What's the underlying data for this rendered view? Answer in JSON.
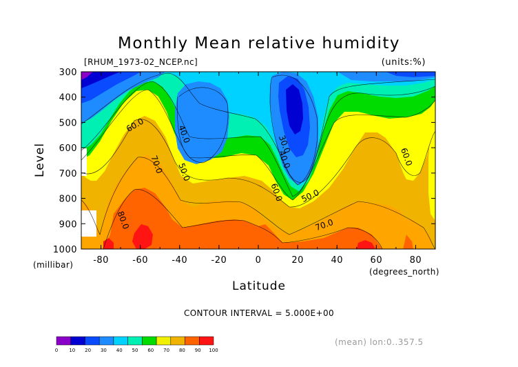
{
  "chart_data": {
    "type": "contour",
    "title": "Monthly Mean relative humidity",
    "file_label": "[RHUM_1973-02_NCEP.nc]",
    "units_label": "(units:%)",
    "xlabel": "Latitude",
    "x_units": "(degrees_north)",
    "ylabel": "Level",
    "y_units": "(millibar)",
    "xlim": [
      -90,
      90
    ],
    "ylim": [
      1000,
      300
    ],
    "x_ticks": [
      "-80",
      "-60",
      "-40",
      "-20",
      "0",
      "20",
      "40",
      "60",
      "80"
    ],
    "x_tick_values": [
      -80,
      -60,
      -40,
      -20,
      0,
      20,
      40,
      60,
      80
    ],
    "y_ticks": [
      "300",
      "400",
      "500",
      "600",
      "700",
      "800",
      "900",
      "1000"
    ],
    "y_tick_values": [
      300,
      400,
      500,
      600,
      700,
      800,
      900,
      1000
    ],
    "contour_interval_label": "CONTOUR INTERVAL = 5.000E+00",
    "footer_label": "(mean) lon:0..357.5",
    "contour_labels": [
      {
        "text": "60.0",
        "lat": -62,
        "lev": 520
      },
      {
        "text": "40.0",
        "lat": -39,
        "lev": 550
      },
      {
        "text": "70.0",
        "lat": -53,
        "lev": 670
      },
      {
        "text": "50.0",
        "lat": -39,
        "lev": 700
      },
      {
        "text": "80.0",
        "lat": -70,
        "lev": 890
      },
      {
        "text": "30.0",
        "lat": 12,
        "lev": 590
      },
      {
        "text": "40.0",
        "lat": 12,
        "lev": 650
      },
      {
        "text": "60.0",
        "lat": 8,
        "lev": 780
      },
      {
        "text": "50.0",
        "lat": 27,
        "lev": 800
      },
      {
        "text": "70.0",
        "lat": 34,
        "lev": 915
      },
      {
        "text": "60.0",
        "lat": 74,
        "lev": 640
      }
    ],
    "colorbar": {
      "levels": [
        "0",
        "10",
        "20",
        "30",
        "40",
        "50",
        "60",
        "70",
        "80",
        "90",
        "100"
      ],
      "colors": [
        "#8a00c8",
        "#0000d2",
        "#0a4bff",
        "#1e8cff",
        "#00d2ff",
        "#00f0b4",
        "#00dc00",
        "#f0f000",
        "#f0b400",
        "#ff6400",
        "#ff1414"
      ]
    },
    "colors": {
      "c10": "#1e1ebe",
      "c15": "#0000d2",
      "c20": "#0a4bff",
      "c25": "#1e8cff",
      "c35": "#1e8cff",
      "c40": "#00d2ff",
      "c45": "#00eeee",
      "c50": "#00f0b4",
      "c55": "#00dc00",
      "c60": "#00dc00",
      "c65": "#f0f000",
      "c70": "#ffff00",
      "c75": "#f0b400",
      "c80": "#ffa500",
      "c85": "#ff6400",
      "c90": "#ff1414",
      "c5": "#8a00c8"
    }
  }
}
